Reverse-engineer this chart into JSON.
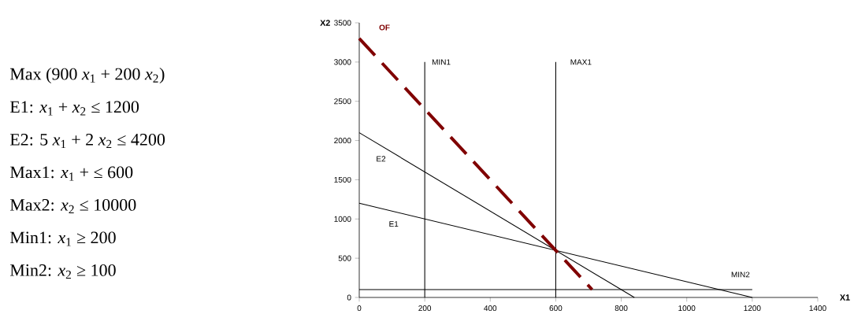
{
  "chart_data": {
    "type": "line",
    "xlabel": "X1",
    "ylabel": "X2",
    "xlim": [
      0,
      1400
    ],
    "ylim": [
      0,
      3500
    ],
    "xticks": [
      0,
      200,
      400,
      600,
      800,
      1000,
      1200,
      1400
    ],
    "yticks": [
      0,
      500,
      1000,
      1500,
      2000,
      2500,
      3000,
      3500
    ],
    "grid": false,
    "marker": "none",
    "annotations": [
      "Max  (900 *x*$_{1}$ + 200 *x*$_{2}$)",
      "E1:     *x*$_{1}$ +   *x*$_{2}$ ≤ 1200",
      "E2:     5 *x*$_{1}$ +  2 *x*$_{2}$ ≤ 4200",
      "Max1:   *x*$_{1}$ +   ≤ 600",
      "Max2:   *x*$_{2}$ ≤ 10000",
      "Min1:   *x*$_{1}$   ≥ 200",
      "Min2:   *x*$_{2}$ ≥ 100"
    ],
    "series": [
      {
        "name": "E1",
        "color": "#000000",
        "line_style": "solid",
        "x": [
          0,
          1200
        ],
        "values": [
          1200,
          0
        ]
      },
      {
        "name": "E2",
        "color": "#000000",
        "line_style": "solid",
        "x": [
          0,
          840
        ],
        "values": [
          2100,
          0
        ]
      },
      {
        "name": "MIN1",
        "color": "#000000",
        "line_style": "solid",
        "x": [
          200,
          200
        ],
        "values": [
          0,
          3000
        ]
      },
      {
        "name": "MAX1",
        "color": "#000000",
        "line_style": "solid",
        "x": [
          600,
          600
        ],
        "values": [
          0,
          3000
        ]
      },
      {
        "name": "MIN2",
        "color": "#000000",
        "line_style": "solid",
        "x": [
          0,
          1200
        ],
        "values": [
          100,
          100
        ]
      },
      {
        "name": "OF",
        "color": "#800000",
        "line_style": "dashed",
        "x": [
          0,
          711
        ],
        "values": [
          3300,
          100
        ]
      }
    ]
  }
}
